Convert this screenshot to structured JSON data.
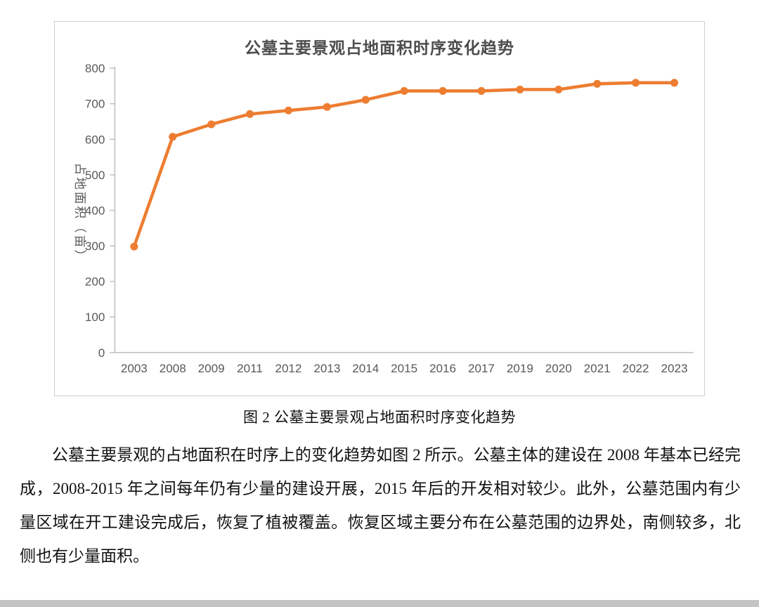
{
  "figure": {
    "caption": "图 2 公墓主要景观占地面积时序变化趋势"
  },
  "body_text": {
    "paragraph": "公墓主要景观的占地面积在时序上的变化趋势如图 2 所示。公墓主体的建设在 2008 年基本已经完成，2008-2015 年之间每年仍有少量的建设开展，2015 年后的开发相对较少。此外，公墓范围内有少量区域在开工建设完成后，恢复了植被覆盖。恢复区域主要分布在公墓范围的边界处，南侧较多，北侧也有少量面积。"
  },
  "chart_data": {
    "type": "line",
    "title": "公墓主要景观占地面积时序变化趋势",
    "categories": [
      "2003",
      "2008",
      "2009",
      "2011",
      "2012",
      "2013",
      "2014",
      "2015",
      "2016",
      "2017",
      "2019",
      "2020",
      "2021",
      "2022",
      "2023"
    ],
    "values": [
      298,
      607,
      642,
      671,
      681,
      691,
      711,
      736,
      736,
      736,
      740,
      740,
      756,
      759,
      759
    ],
    "xlabel": "",
    "ylabel": "占地面积（亩）",
    "ylim": [
      0,
      800
    ],
    "ytick_step": 100,
    "grid": false,
    "legend": "none",
    "line_color": "#ED7D31",
    "axis_color": "#BFBFBF",
    "tick_text_color": "#595959",
    "title_text_color": "#4d4d4d"
  }
}
